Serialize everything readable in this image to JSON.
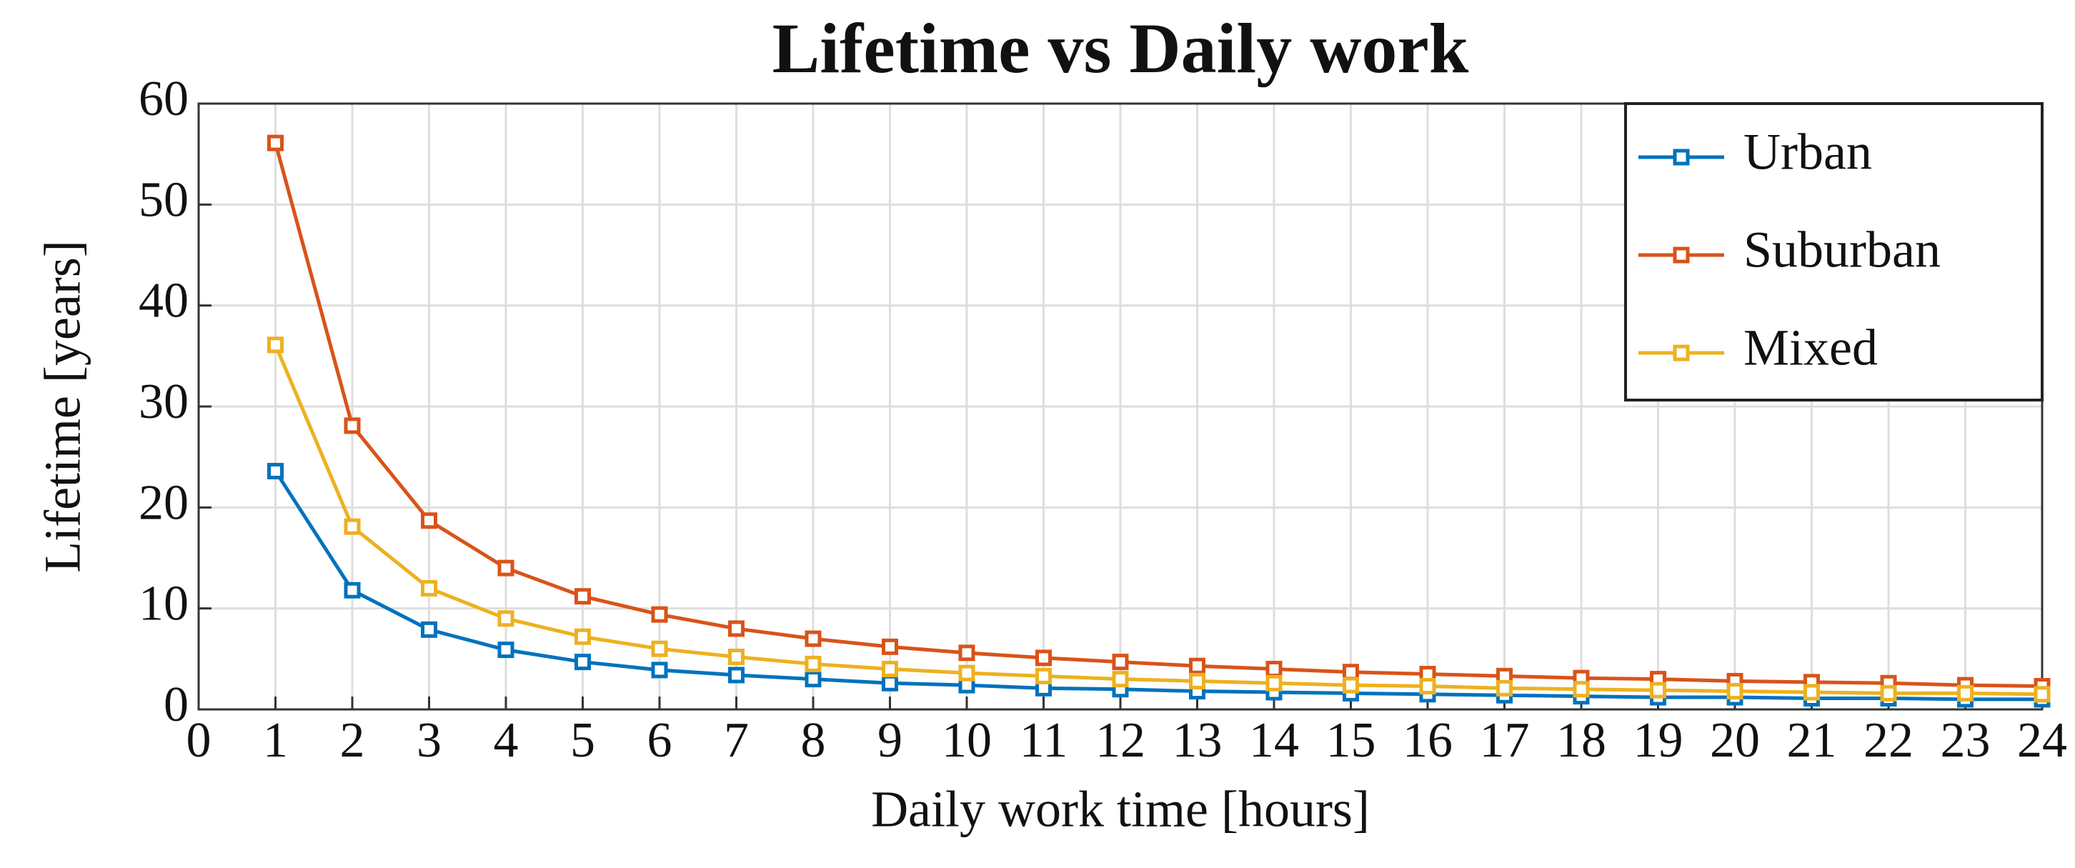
{
  "chart_data": {
    "type": "line",
    "title": "Lifetime vs Daily work",
    "x_label": "Daily work time [hours]",
    "y_label": "Lifetime [years]",
    "x": [
      1,
      2,
      3,
      4,
      5,
      6,
      7,
      8,
      9,
      10,
      11,
      12,
      13,
      14,
      15,
      16,
      17,
      18,
      19,
      20,
      21,
      22,
      23,
      24
    ],
    "series": [
      {
        "name": "Urban",
        "color": "#0072bd",
        "values": [
          23.6,
          11.8,
          7.9,
          5.9,
          4.7,
          3.9,
          3.4,
          3.0,
          2.6,
          2.4,
          2.1,
          2.0,
          1.8,
          1.7,
          1.6,
          1.5,
          1.4,
          1.3,
          1.2,
          1.2,
          1.1,
          1.1,
          1.0,
          1.0
        ]
      },
      {
        "name": "Suburban",
        "color": "#d95319",
        "values": [
          56.1,
          28.1,
          18.7,
          14.0,
          11.2,
          9.4,
          8.0,
          7.0,
          6.2,
          5.6,
          5.1,
          4.7,
          4.3,
          4.0,
          3.7,
          3.5,
          3.3,
          3.1,
          3.0,
          2.8,
          2.7,
          2.6,
          2.4,
          2.3
        ]
      },
      {
        "name": "Mixed",
        "color": "#edb120",
        "values": [
          36.1,
          18.1,
          12.0,
          9.0,
          7.2,
          6.0,
          5.2,
          4.5,
          4.0,
          3.6,
          3.3,
          3.0,
          2.8,
          2.6,
          2.4,
          2.3,
          2.1,
          2.0,
          1.9,
          1.8,
          1.7,
          1.6,
          1.6,
          1.5
        ]
      }
    ],
    "xlim": [
      0,
      24
    ],
    "xticks": [
      0,
      1,
      2,
      3,
      4,
      5,
      6,
      7,
      8,
      9,
      10,
      11,
      12,
      13,
      14,
      15,
      16,
      17,
      18,
      19,
      20,
      21,
      22,
      23,
      24
    ],
    "ylim": [
      0,
      60
    ],
    "yticks": [
      0,
      10,
      20,
      30,
      40,
      50,
      60
    ],
    "grid": true,
    "legend": "upper right"
  }
}
